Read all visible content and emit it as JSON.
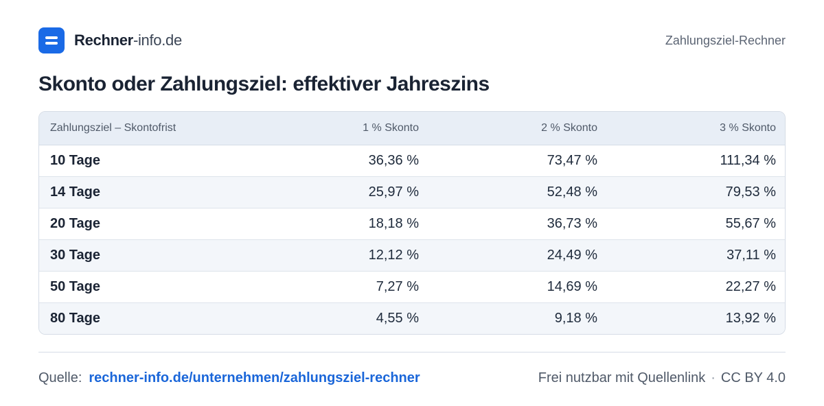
{
  "header": {
    "brand_bold": "Rechner",
    "brand_light": "-info.de",
    "right_label": "Zahlungsziel-Rechner"
  },
  "title": "Skonto oder Zahlungsziel: effektiver Jahreszins",
  "table": {
    "columns": [
      "Zahlungsziel – Skontofrist",
      "1 % Skonto",
      "2 % Skonto",
      "3 % Skonto"
    ],
    "rows": [
      [
        "10 Tage",
        "36,36 %",
        "73,47 %",
        "111,34 %"
      ],
      [
        "14 Tage",
        "25,97 %",
        "52,48 %",
        "79,53 %"
      ],
      [
        "20 Tage",
        "18,18 %",
        "36,73 %",
        "55,67 %"
      ],
      [
        "30 Tage",
        "12,12 %",
        "24,49 %",
        "37,11 %"
      ],
      [
        "50 Tage",
        "7,27 %",
        "14,69 %",
        "22,27 %"
      ],
      [
        "80 Tage",
        "4,55 %",
        "9,18 %",
        "13,92 %"
      ]
    ]
  },
  "footer": {
    "source_label": "Quelle:",
    "source_link": "rechner-info.de/unternehmen/zahlungsziel-rechner",
    "license_text": "Frei nutzbar mit Quellenlink",
    "separator": "·",
    "license_name": "CC BY 4.0"
  },
  "colors": {
    "accent": "#1a6ae6",
    "link": "#1a66d9",
    "header_bg": "#e8eef6",
    "row_alt_bg": "#f3f6fa"
  },
  "icons": {
    "logo": "menu-lines-icon"
  }
}
